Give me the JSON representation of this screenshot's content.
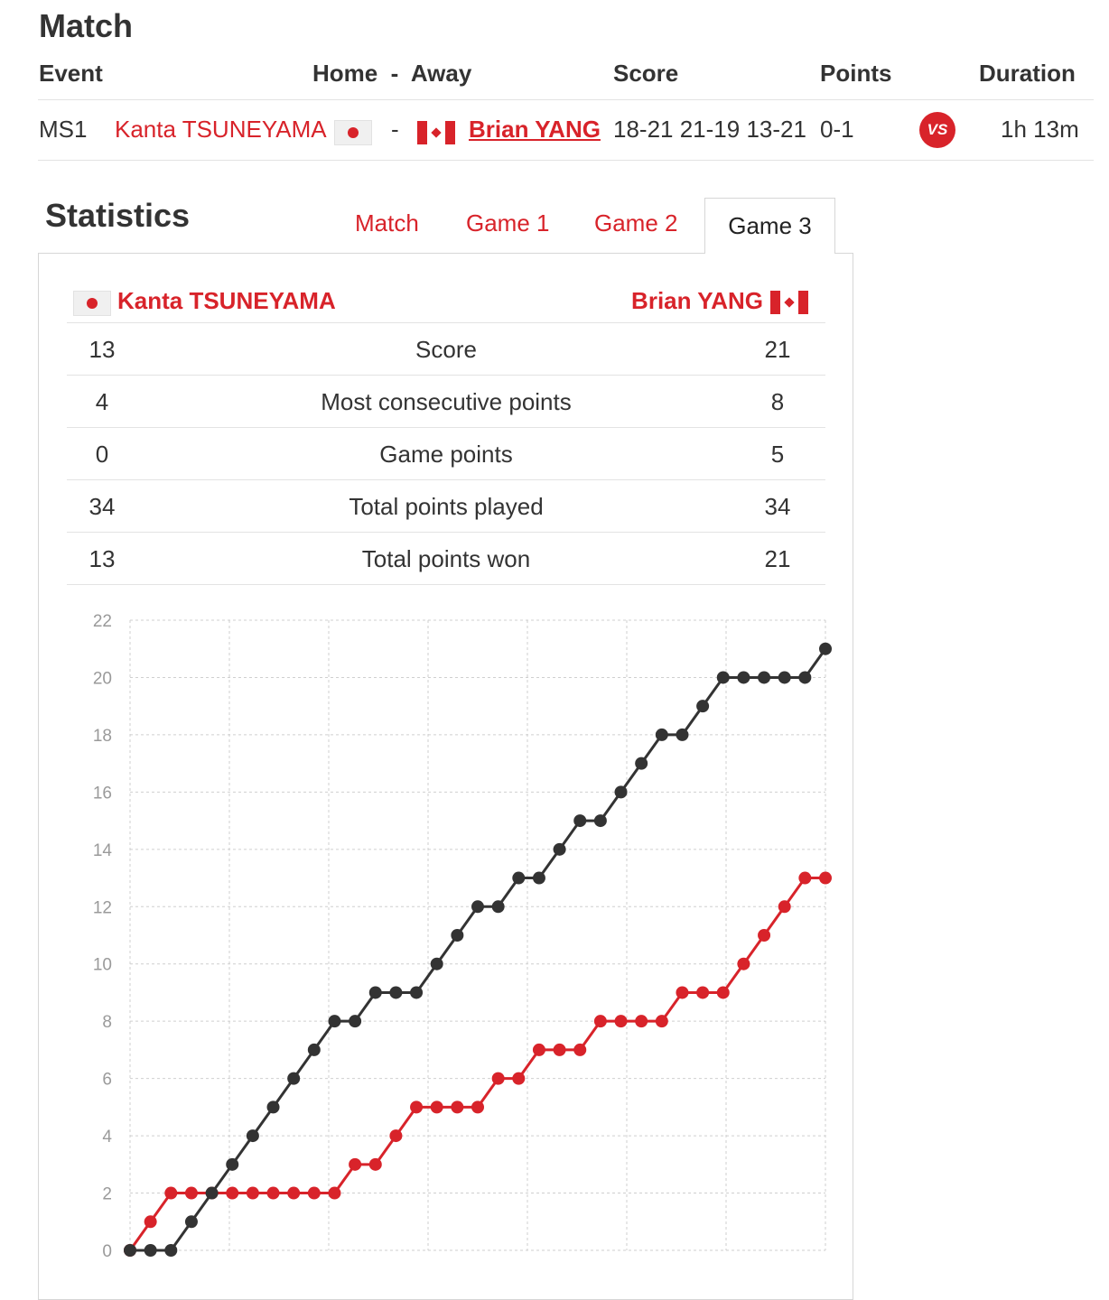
{
  "match": {
    "title": "Match",
    "headers": {
      "event": "Event",
      "home_away": "Home  -  Away",
      "score": "Score",
      "points": "Points",
      "duration": "Duration"
    },
    "row": {
      "event": "MS1",
      "home": "Kanta TSUNEYAMA",
      "home_flag": "japan-flag-icon",
      "separator": "-",
      "away_flag": "canada-flag-icon",
      "away": "Brian YANG",
      "score": "18-21 21-19 13-21",
      "points": "0-1",
      "vs": "VS",
      "duration": "1h 13m"
    }
  },
  "statistics": {
    "title": "Statistics",
    "tabs": [
      {
        "label": "Match",
        "active": false
      },
      {
        "label": "Game 1",
        "active": false
      },
      {
        "label": "Game 2",
        "active": false
      },
      {
        "label": "Game 3",
        "active": true
      }
    ],
    "home_player": "Kanta TSUNEYAMA",
    "away_player": "Brian YANG",
    "rows": [
      {
        "home": "13",
        "label": "Score",
        "away": "21"
      },
      {
        "home": "4",
        "label": "Most consecutive points",
        "away": "8"
      },
      {
        "home": "0",
        "label": "Game points",
        "away": "5"
      },
      {
        "home": "34",
        "label": "Total points played",
        "away": "34"
      },
      {
        "home": "13",
        "label": "Total points won",
        "away": "21"
      }
    ]
  },
  "colors": {
    "accent": "#d8232a",
    "away_series": "#333333"
  },
  "chart_data": {
    "type": "line",
    "title": "",
    "xlabel": "",
    "ylabel": "",
    "ylim": [
      0,
      22
    ],
    "yticks": [
      0,
      2,
      4,
      6,
      8,
      10,
      12,
      14,
      16,
      18,
      20,
      22
    ],
    "grid": true,
    "x": [
      0,
      1,
      2,
      3,
      4,
      5,
      6,
      7,
      8,
      9,
      10,
      11,
      12,
      13,
      14,
      15,
      16,
      17,
      18,
      19,
      20,
      21,
      22,
      23,
      24,
      25,
      26,
      27,
      28,
      29,
      30,
      31,
      32,
      33,
      34
    ],
    "series": [
      {
        "color": "#d8232a",
        "values": [
          0,
          1,
          2,
          2,
          2,
          2,
          2,
          2,
          2,
          2,
          2,
          3,
          3,
          4,
          5,
          5,
          5,
          5,
          6,
          6,
          7,
          7,
          7,
          8,
          8,
          8,
          8,
          9,
          9,
          9,
          10,
          11,
          12,
          13,
          13
        ]
      },
      {
        "color": "#333333",
        "values": [
          0,
          0,
          0,
          1,
          2,
          3,
          4,
          5,
          6,
          7,
          8,
          8,
          9,
          9,
          9,
          10,
          11,
          12,
          12,
          13,
          13,
          14,
          15,
          15,
          16,
          17,
          18,
          18,
          19,
          20,
          20,
          20,
          20,
          20,
          21
        ]
      }
    ]
  }
}
